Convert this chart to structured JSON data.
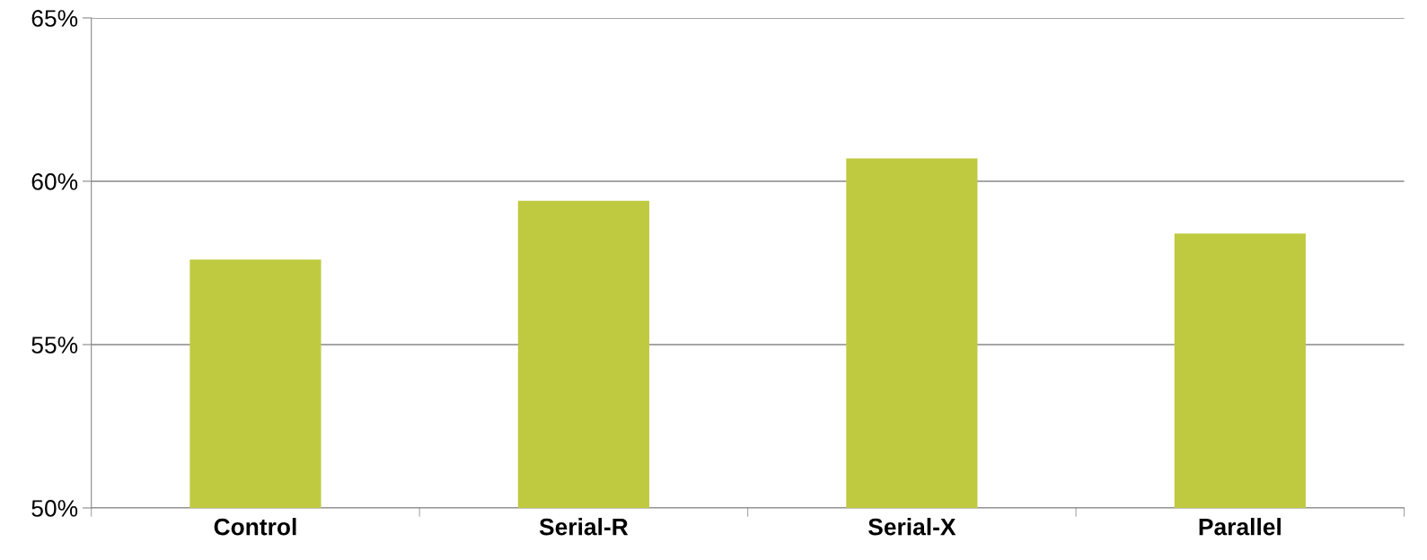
{
  "chart_data": {
    "type": "bar",
    "categories": [
      "Control",
      "Serial-R",
      "Serial-X",
      "Parallel"
    ],
    "values": [
      57.6,
      59.4,
      60.7,
      58.4
    ],
    "color": "#bfca41",
    "ylim": [
      50,
      65
    ],
    "yticks": [
      {
        "value": 50,
        "label": "50%"
      },
      {
        "value": 55,
        "label": "55%"
      },
      {
        "value": 60,
        "label": "60%"
      },
      {
        "value": 65,
        "label": "65%"
      }
    ],
    "grid": "y",
    "legend": false
  }
}
